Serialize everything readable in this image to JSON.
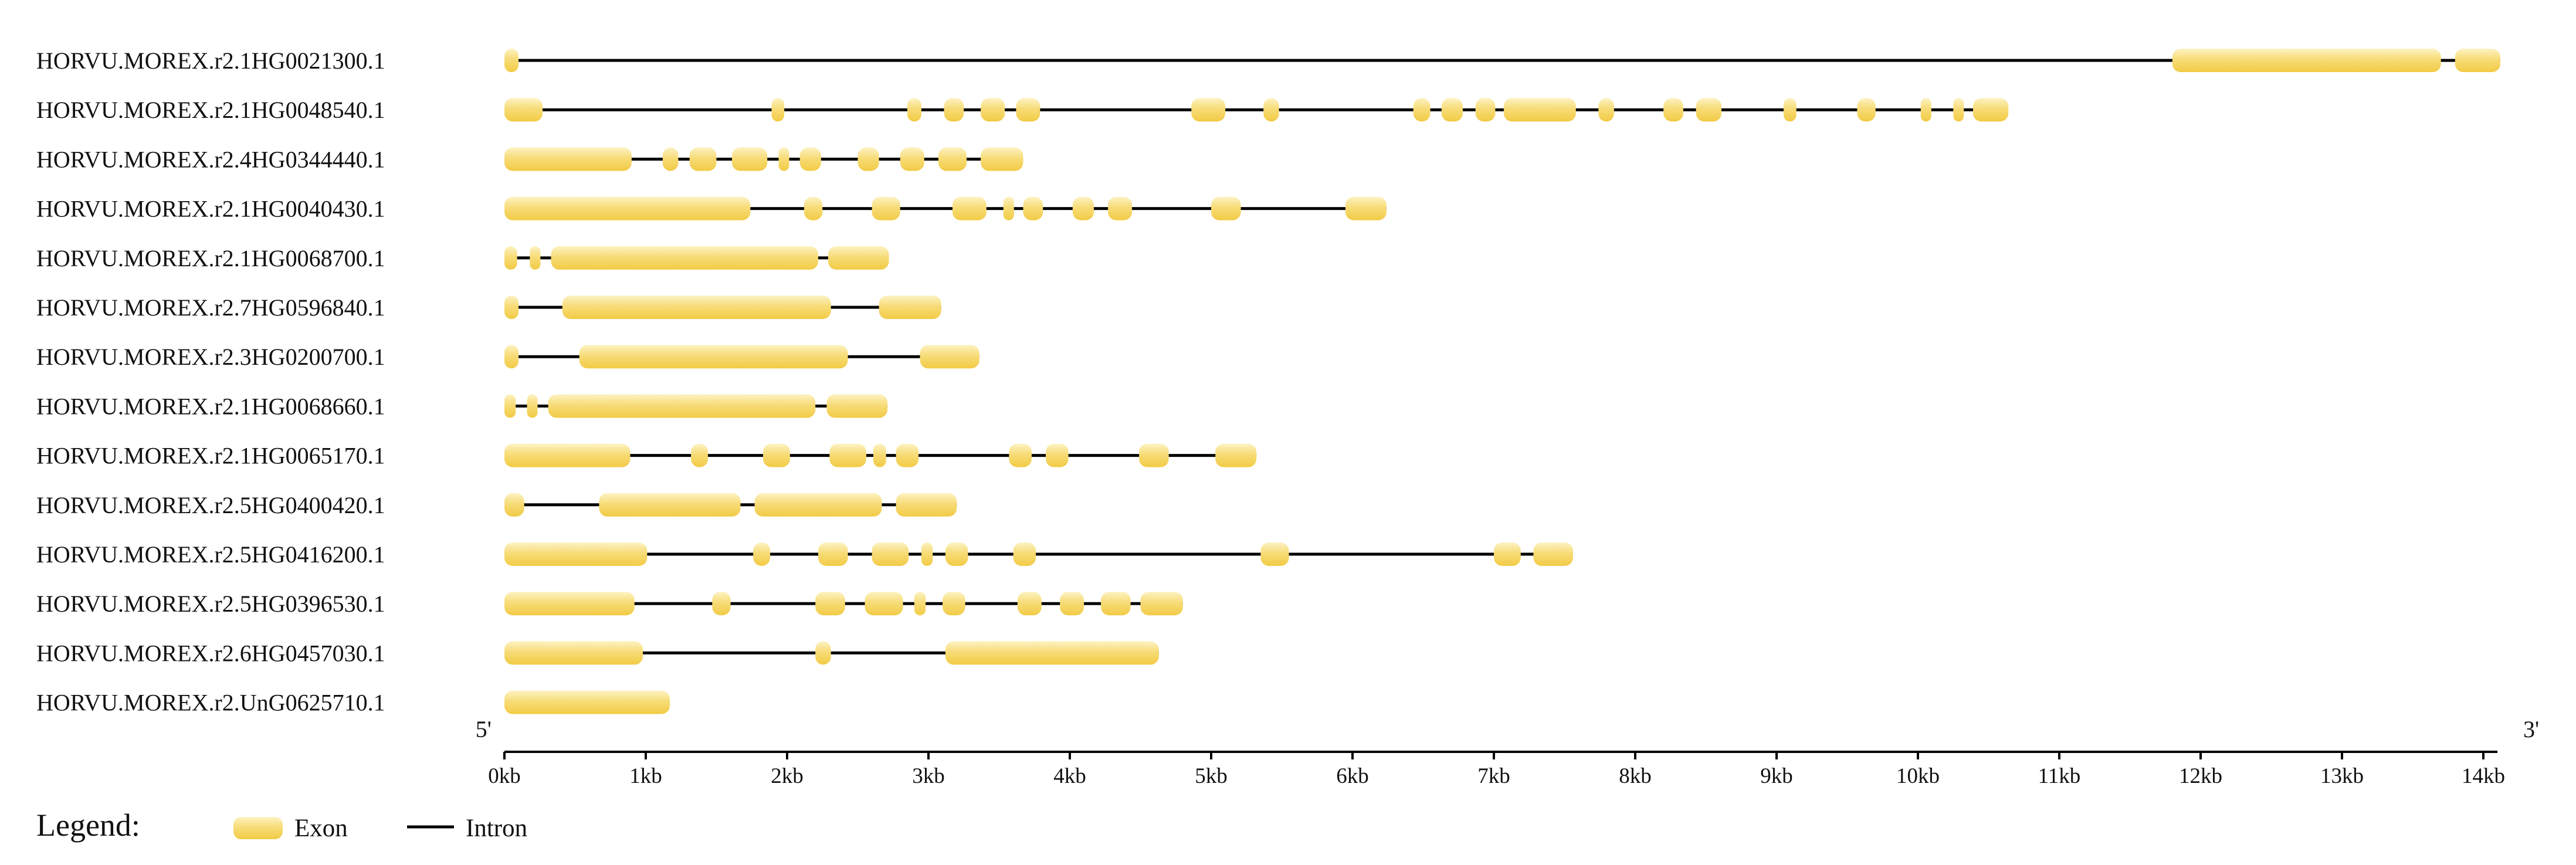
{
  "chart_data": {
    "type": "gene-structure",
    "units": "kb",
    "xlim": [
      0,
      14.1
    ],
    "end_labels": {
      "five_prime": "5'",
      "three_prime": "3'"
    },
    "ticks": [
      {
        "value": 0,
        "label": "0kb"
      },
      {
        "value": 1,
        "label": "1kb"
      },
      {
        "value": 2,
        "label": "2kb"
      },
      {
        "value": 3,
        "label": "3kb"
      },
      {
        "value": 4,
        "label": "4kb"
      },
      {
        "value": 5,
        "label": "5kb"
      },
      {
        "value": 6,
        "label": "6kb"
      },
      {
        "value": 7,
        "label": "7kb"
      },
      {
        "value": 8,
        "label": "8kb"
      },
      {
        "value": 9,
        "label": "9kb"
      },
      {
        "value": 10,
        "label": "10kb"
      },
      {
        "value": 11,
        "label": "11kb"
      },
      {
        "value": 12,
        "label": "12kb"
      },
      {
        "value": 13,
        "label": "13kb"
      },
      {
        "value": 14,
        "label": "14kb"
      }
    ],
    "legend": {
      "title": "Legend:",
      "exon": "Exon",
      "intron": "Intron"
    },
    "colors": {
      "exon_light": "#fdf3c4",
      "exon_dark": "#f2cb45",
      "intron": "#000000"
    },
    "genes": [
      {
        "id": "HORVU.MOREX.r2.1HG0021300.1",
        "length": 14.12,
        "exons": [
          [
            0.0,
            0.1
          ],
          [
            11.8,
            13.7
          ],
          [
            13.8,
            14.12
          ]
        ]
      },
      {
        "id": "HORVU.MOREX.r2.1HG0048540.1",
        "length": 10.6,
        "exons": [
          [
            0.0,
            0.27
          ],
          [
            1.89,
            1.98
          ],
          [
            2.85,
            2.95
          ],
          [
            3.11,
            3.25
          ],
          [
            3.37,
            3.54
          ],
          [
            3.62,
            3.79
          ],
          [
            4.86,
            5.1
          ],
          [
            5.37,
            5.48
          ],
          [
            6.43,
            6.55
          ],
          [
            6.63,
            6.78
          ],
          [
            6.87,
            7.01
          ],
          [
            7.07,
            7.58
          ],
          [
            7.74,
            7.85
          ],
          [
            8.2,
            8.34
          ],
          [
            8.43,
            8.61
          ],
          [
            9.05,
            9.14
          ],
          [
            9.57,
            9.7
          ],
          [
            10.02,
            10.07
          ],
          [
            10.25,
            10.3
          ],
          [
            10.39,
            10.64
          ]
        ]
      },
      {
        "id": "HORVU.MOREX.r2.4HG0344440.1",
        "length": 3.67,
        "exons": [
          [
            0.0,
            0.9
          ],
          [
            1.12,
            1.23
          ],
          [
            1.31,
            1.5
          ],
          [
            1.61,
            1.86
          ],
          [
            1.94,
            2.0
          ],
          [
            2.09,
            2.24
          ],
          [
            2.5,
            2.65
          ],
          [
            2.8,
            2.97
          ],
          [
            3.07,
            3.27
          ],
          [
            3.37,
            3.67
          ]
        ]
      },
      {
        "id": "HORVU.MOREX.r2.1HG0040430.1",
        "length": 6.24,
        "exons": [
          [
            0.0,
            1.74
          ],
          [
            2.12,
            2.25
          ],
          [
            2.6,
            2.8
          ],
          [
            3.17,
            3.41
          ],
          [
            3.53,
            3.59
          ],
          [
            3.67,
            3.81
          ],
          [
            4.02,
            4.17
          ],
          [
            4.27,
            4.44
          ],
          [
            5.0,
            5.21
          ],
          [
            5.95,
            6.24
          ]
        ]
      },
      {
        "id": "HORVU.MOREX.r2.1HG0068700.1",
        "length": 2.72,
        "exons": [
          [
            0.0,
            0.09
          ],
          [
            0.18,
            0.25
          ],
          [
            0.33,
            2.22
          ],
          [
            2.29,
            2.72
          ]
        ]
      },
      {
        "id": "HORVU.MOREX.r2.7HG0596840.1",
        "length": 3.09,
        "exons": [
          [
            0.0,
            0.1
          ],
          [
            0.41,
            2.31
          ],
          [
            2.65,
            3.09
          ]
        ]
      },
      {
        "id": "HORVU.MOREX.r2.3HG0200700.1",
        "length": 3.36,
        "exons": [
          [
            0.0,
            0.1
          ],
          [
            0.53,
            2.43
          ],
          [
            2.94,
            3.36
          ]
        ]
      },
      {
        "id": "HORVU.MOREX.r2.1HG0068660.1",
        "length": 2.71,
        "exons": [
          [
            0.0,
            0.08
          ],
          [
            0.16,
            0.23
          ],
          [
            0.31,
            2.2
          ],
          [
            2.28,
            2.71
          ]
        ]
      },
      {
        "id": "HORVU.MOREX.r2.1HG0065170.1",
        "length": 5.32,
        "exons": [
          [
            0.0,
            0.89
          ],
          [
            1.32,
            1.44
          ],
          [
            1.83,
            2.02
          ],
          [
            2.3,
            2.56
          ],
          [
            2.61,
            2.7
          ],
          [
            2.77,
            2.93
          ],
          [
            3.57,
            3.73
          ],
          [
            3.83,
            3.99
          ],
          [
            4.49,
            4.7
          ],
          [
            5.03,
            5.32
          ]
        ]
      },
      {
        "id": "HORVU.MOREX.r2.5HG0400420.1",
        "length": 3.2,
        "exons": [
          [
            0.0,
            0.14
          ],
          [
            0.67,
            1.67
          ],
          [
            1.77,
            2.67
          ],
          [
            2.77,
            3.2
          ]
        ]
      },
      {
        "id": "HORVU.MOREX.r2.5HG0416200.1",
        "length": 7.56,
        "exons": [
          [
            0.0,
            1.01
          ],
          [
            1.76,
            1.88
          ],
          [
            2.22,
            2.43
          ],
          [
            2.6,
            2.86
          ],
          [
            2.95,
            3.03
          ],
          [
            3.12,
            3.28
          ],
          [
            3.6,
            3.76
          ],
          [
            5.35,
            5.55
          ],
          [
            7.0,
            7.19
          ],
          [
            7.28,
            7.56
          ]
        ]
      },
      {
        "id": "HORVU.MOREX.r2.5HG0396530.1",
        "length": 4.8,
        "exons": [
          [
            0.0,
            0.92
          ],
          [
            1.47,
            1.6
          ],
          [
            2.2,
            2.41
          ],
          [
            2.55,
            2.82
          ],
          [
            2.9,
            2.98
          ],
          [
            3.1,
            3.26
          ],
          [
            3.63,
            3.8
          ],
          [
            3.93,
            4.1
          ],
          [
            4.22,
            4.43
          ],
          [
            4.5,
            4.8
          ]
        ]
      },
      {
        "id": "HORVU.MOREX.r2.6HG0457030.1",
        "length": 4.63,
        "exons": [
          [
            0.0,
            0.98
          ],
          [
            2.2,
            2.31
          ],
          [
            3.12,
            4.63
          ]
        ]
      },
      {
        "id": "HORVU.MOREX.r2.UnG0625710.1",
        "length": 1.17,
        "exons": [
          [
            0.0,
            1.17
          ]
        ]
      }
    ]
  }
}
